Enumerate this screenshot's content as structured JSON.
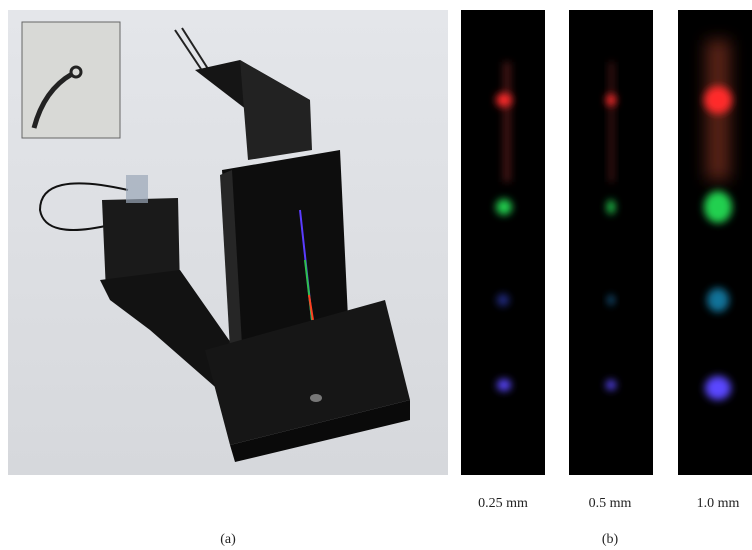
{
  "figure": {
    "panel_a": {
      "label": "(a)"
    },
    "panel_b": {
      "label": "(b)",
      "strips": [
        {
          "caption": "0.25 mm"
        },
        {
          "caption": "0.5 mm"
        },
        {
          "caption": "1.0 mm"
        }
      ]
    }
  }
}
